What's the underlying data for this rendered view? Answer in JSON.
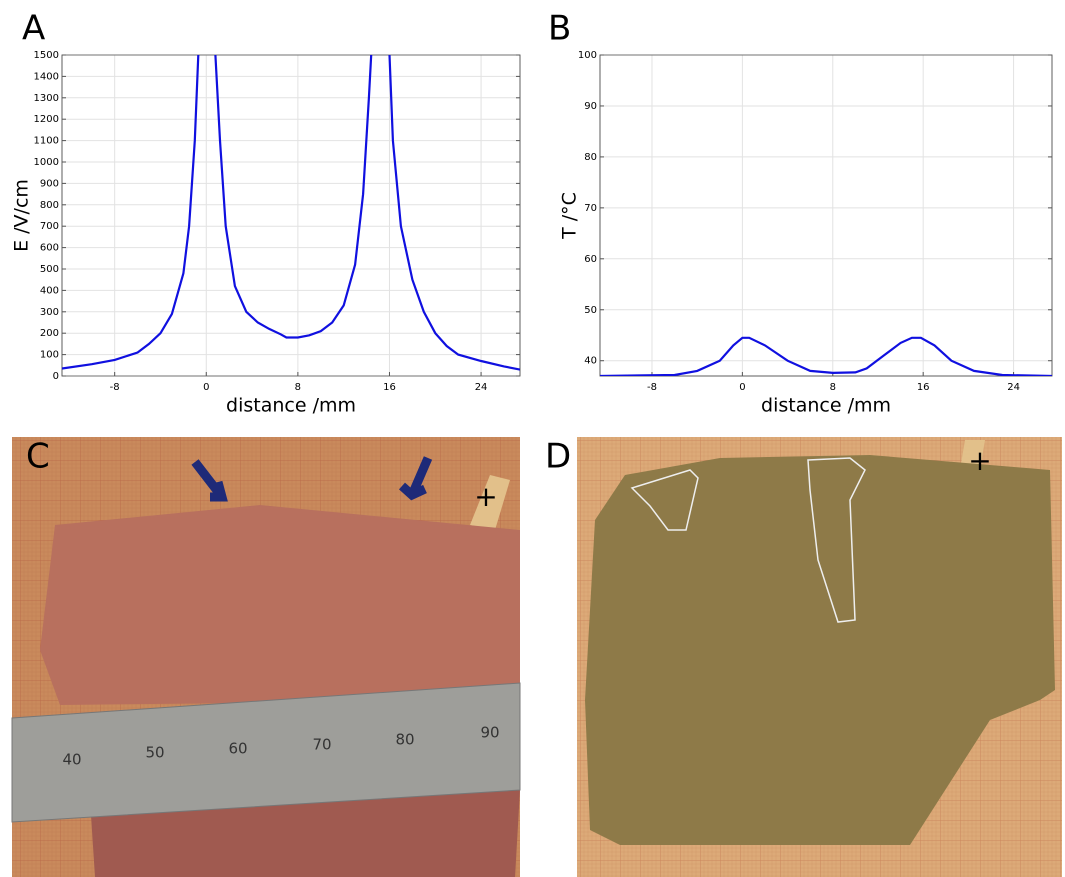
{
  "panel_labels": [
    "A",
    "B",
    "C",
    "D"
  ],
  "chart_data": [
    {
      "type": "line",
      "x_label": "distance /mm",
      "y_label": "E /V/cm",
      "color": "#1010e0",
      "grid": true,
      "xlim": [
        -12.6,
        27.4
      ],
      "xticks": [
        -8,
        0,
        8,
        16,
        24
      ],
      "ylim": [
        0,
        1500
      ],
      "yticks": [
        0,
        100,
        200,
        300,
        400,
        500,
        600,
        700,
        800,
        900,
        1000,
        1100,
        1200,
        1300,
        1400,
        1500
      ],
      "x": [
        -12.6,
        -10,
        -8,
        -6,
        -5,
        -4,
        -3,
        -2,
        -1.5,
        -1,
        -0.7,
        0,
        0.8,
        1.2,
        1.7,
        2.5,
        3.5,
        4.5,
        5.5,
        6.5,
        7,
        8,
        9,
        10,
        11,
        12,
        13,
        13.7,
        14.2,
        14.4,
        15.2,
        16,
        16.3,
        17,
        18,
        19,
        20,
        21,
        22,
        24,
        26,
        27.4
      ],
      "values": [
        35,
        55,
        75,
        110,
        150,
        200,
        290,
        480,
        700,
        1100,
        1500,
        null,
        1500,
        1100,
        700,
        420,
        300,
        250,
        220,
        195,
        180,
        180,
        190,
        210,
        250,
        330,
        520,
        850,
        1300,
        1500,
        null,
        1500,
        1100,
        700,
        450,
        300,
        200,
        140,
        100,
        70,
        45,
        30
      ]
    },
    {
      "type": "line",
      "x_label": "distance /mm",
      "y_label": "T /°C",
      "color": "#1010e0",
      "grid": true,
      "xlim": [
        -12.6,
        27.4
      ],
      "xticks": [
        -8,
        0,
        8,
        16,
        24
      ],
      "ylim": [
        37,
        100
      ],
      "yticks": [
        40,
        50,
        60,
        70,
        80,
        90,
        100
      ],
      "x": [
        -12.6,
        -6,
        -4,
        -2,
        -0.8,
        0,
        0.6,
        2,
        4,
        6,
        8,
        10,
        11,
        12.5,
        14,
        15,
        15.8,
        17,
        18.5,
        20.5,
        23,
        27.4
      ],
      "values": [
        37,
        37.2,
        38,
        40,
        43,
        44.5,
        44.5,
        43,
        40,
        38,
        37.6,
        37.7,
        38.5,
        41,
        43.5,
        44.5,
        44.5,
        43,
        40,
        38,
        37.2,
        37
      ]
    }
  ],
  "photo_c": {
    "ruler_labels": [
      "40",
      "50",
      "60",
      "70",
      "80",
      "90"
    ],
    "marker": "+"
  },
  "photo_d": {
    "marker": "+"
  }
}
